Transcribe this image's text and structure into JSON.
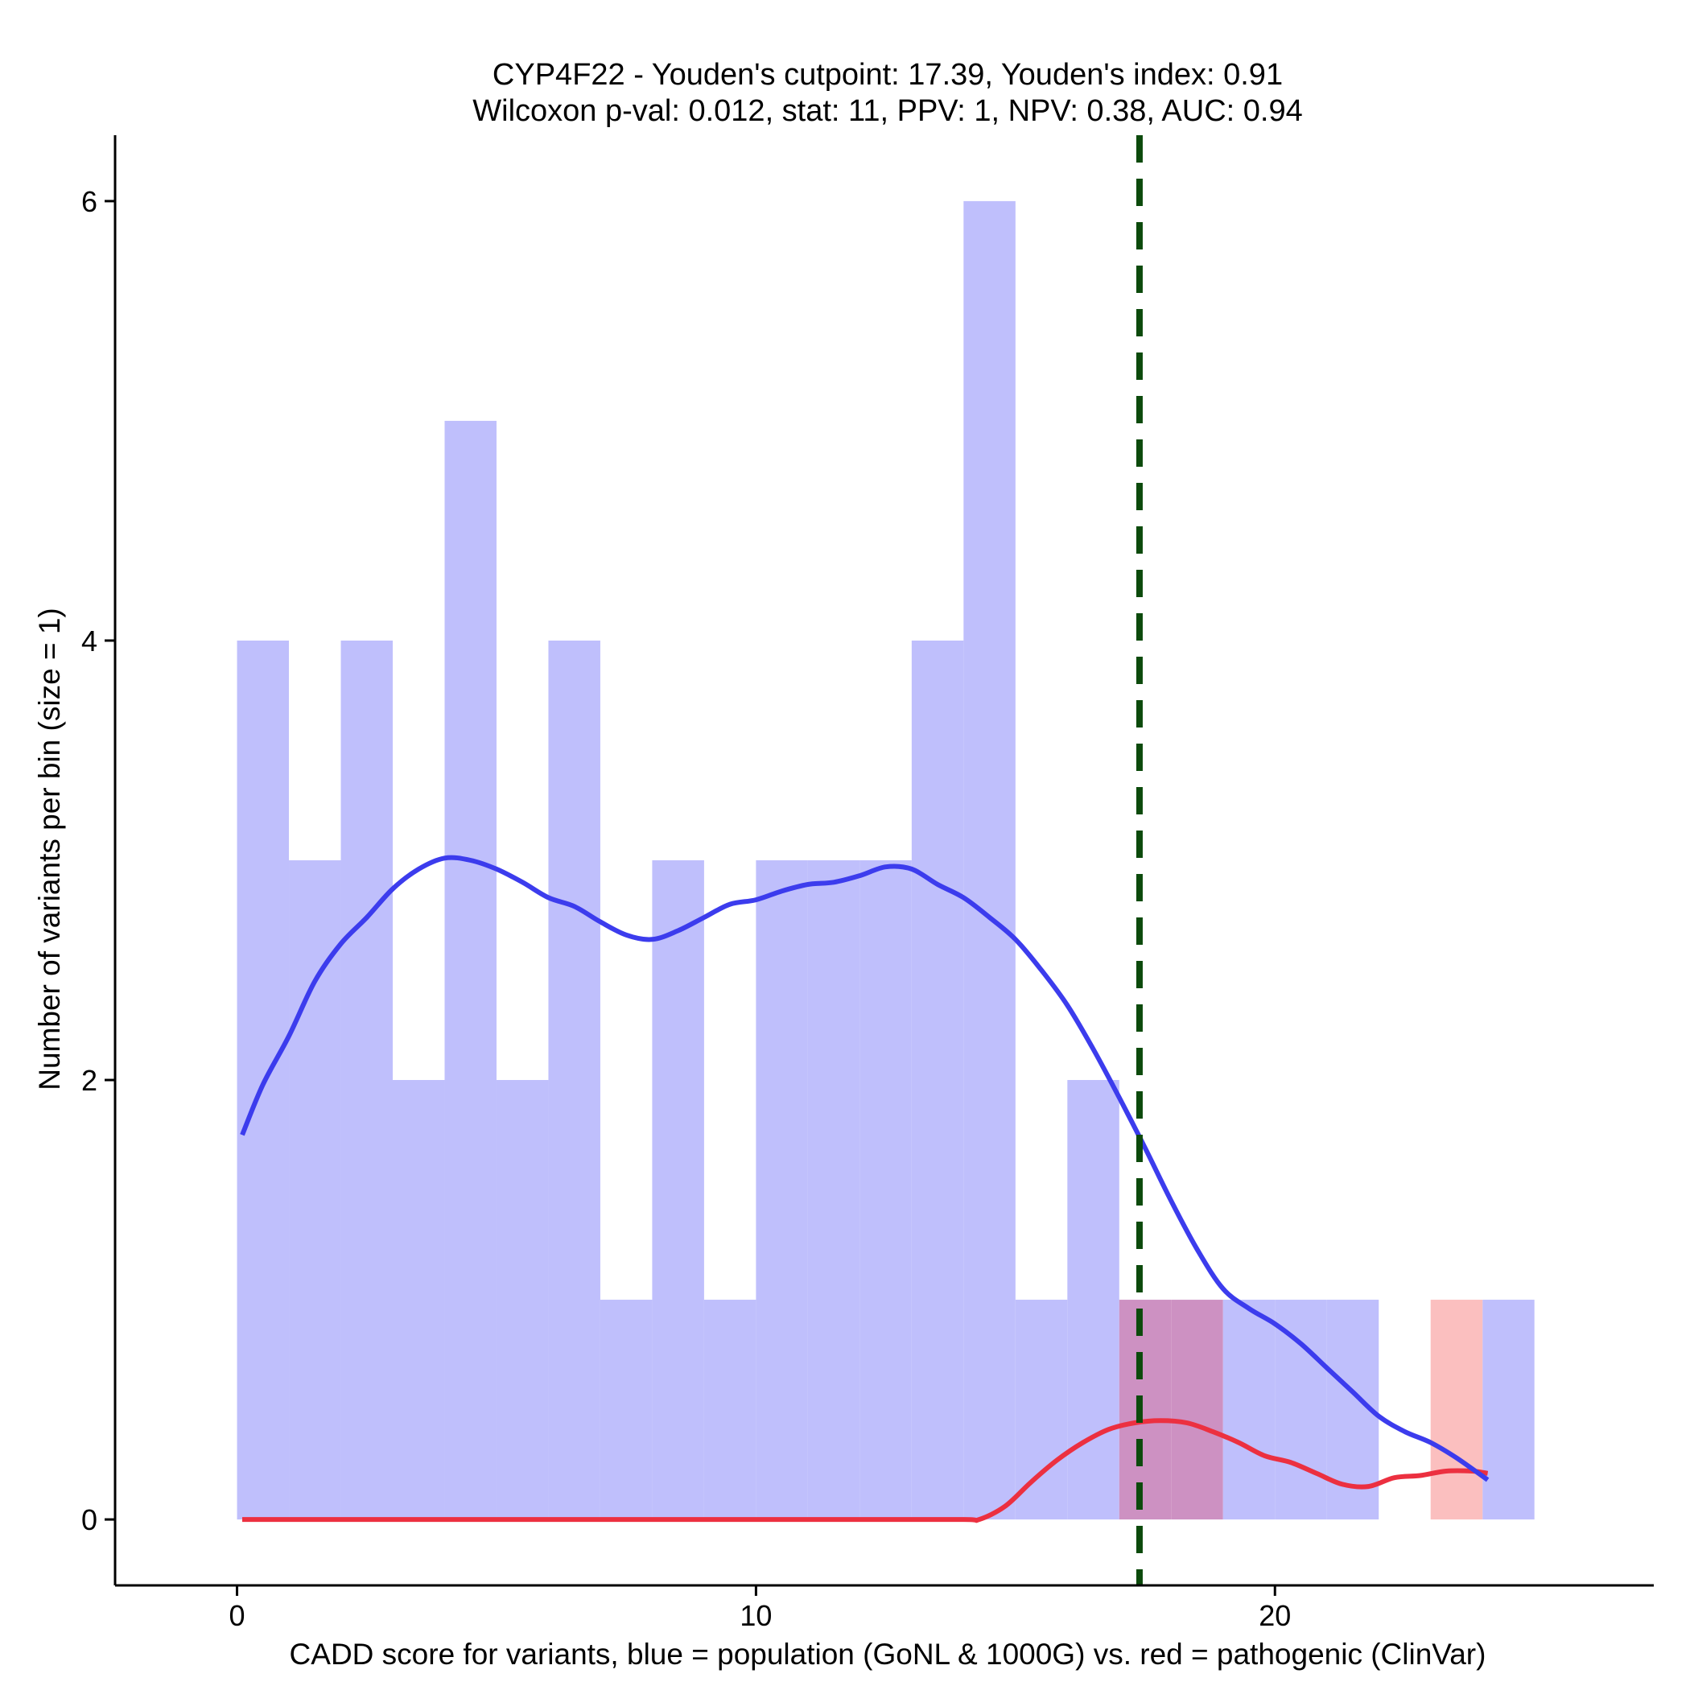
{
  "chart_data": {
    "type": "histogram",
    "title_line1": "CYP4F22 - Youden's cutpoint: 17.39, Youden's index: 0.91",
    "title_line2": "Wilcoxon p-val: 0.012, stat: 11, PPV: 1, NPV: 0.38, AUC: 0.94",
    "xlabel": "CADD score for variants, blue = population (GoNL & 1000G) vs. red = pathogenic (ClinVar)",
    "ylabel": "Number of variants per bin (size = 1)",
    "xlim": [
      -2.35,
      27.3
    ],
    "ylim": [
      -0.3,
      6.3
    ],
    "x_ticks": [
      0,
      10,
      20
    ],
    "y_ticks": [
      0,
      2,
      4,
      6
    ],
    "cutpoint": 17.39,
    "bin_size": 1,
    "colors": {
      "population_bar": "#bfbffc",
      "pathogenic_bar": "#fbbfbf",
      "overlap_bar": "#cd91c2",
      "population_line": "#3c3ced",
      "pathogenic_line": "#ec3040",
      "cutpoint_line": "#0c4a0c"
    },
    "series": [
      {
        "name": "population",
        "bins": [
          {
            "x0": 0,
            "x1": 1,
            "count": 4
          },
          {
            "x0": 1,
            "x1": 2,
            "count": 3
          },
          {
            "x0": 2,
            "x1": 3,
            "count": 4
          },
          {
            "x0": 3,
            "x1": 4,
            "count": 2
          },
          {
            "x0": 4,
            "x1": 5,
            "count": 5
          },
          {
            "x0": 5,
            "x1": 6,
            "count": 2
          },
          {
            "x0": 6,
            "x1": 7,
            "count": 4
          },
          {
            "x0": 7,
            "x1": 8,
            "count": 1
          },
          {
            "x0": 8,
            "x1": 9,
            "count": 3
          },
          {
            "x0": 9,
            "x1": 10,
            "count": 1
          },
          {
            "x0": 10,
            "x1": 11,
            "count": 3
          },
          {
            "x0": 11,
            "x1": 12,
            "count": 3
          },
          {
            "x0": 12,
            "x1": 13,
            "count": 3
          },
          {
            "x0": 13,
            "x1": 14,
            "count": 4
          },
          {
            "x0": 14,
            "x1": 15,
            "count": 6
          },
          {
            "x0": 15,
            "x1": 16,
            "count": 1
          },
          {
            "x0": 16,
            "x1": 17,
            "count": 2
          },
          {
            "x0": 17,
            "x1": 18,
            "count": 1
          },
          {
            "x0": 18,
            "x1": 19,
            "count": 1
          },
          {
            "x0": 19,
            "x1": 20,
            "count": 1
          },
          {
            "x0": 20,
            "x1": 21,
            "count": 1
          },
          {
            "x0": 21,
            "x1": 22,
            "count": 1
          },
          {
            "x0": 24,
            "x1": 25,
            "count": 1
          }
        ],
        "density_curve": {
          "x": [
            0.1,
            0.5,
            1.0,
            1.5,
            2.0,
            2.5,
            3.0,
            3.5,
            4.0,
            4.5,
            5.0,
            5.5,
            6.0,
            6.5,
            7.0,
            7.5,
            8.0,
            8.5,
            9.0,
            9.5,
            10.0,
            10.5,
            11.0,
            11.5,
            12.0,
            12.5,
            13.0,
            13.5,
            14.0,
            14.5,
            15.0,
            15.5,
            16.0,
            16.5,
            17.0,
            17.5,
            18.0,
            18.5,
            19.0,
            19.5,
            20.0,
            20.5,
            21.0,
            21.5,
            22.0,
            22.5,
            23.0,
            23.5,
            24.1
          ],
          "y": [
            1.75,
            1.98,
            2.2,
            2.45,
            2.62,
            2.74,
            2.87,
            2.96,
            3.01,
            3.0,
            2.96,
            2.9,
            2.83,
            2.79,
            2.72,
            2.66,
            2.64,
            2.68,
            2.74,
            2.8,
            2.82,
            2.86,
            2.89,
            2.9,
            2.93,
            2.97,
            2.96,
            2.89,
            2.83,
            2.74,
            2.64,
            2.5,
            2.34,
            2.14,
            1.92,
            1.69,
            1.45,
            1.23,
            1.05,
            0.96,
            0.89,
            0.8,
            0.69,
            0.58,
            0.47,
            0.4,
            0.35,
            0.28,
            0.18
          ]
        }
      },
      {
        "name": "pathogenic",
        "bins": [
          {
            "x0": 17,
            "x1": 18,
            "count": 1
          },
          {
            "x0": 18,
            "x1": 19,
            "count": 1
          },
          {
            "x0": 23,
            "x1": 24,
            "count": 1
          }
        ],
        "density_curve": {
          "x": [
            0.1,
            2.0,
            4.0,
            6.0,
            8.0,
            10.0,
            12.0,
            14.0,
            14.3,
            14.8,
            15.3,
            15.8,
            16.3,
            16.8,
            17.3,
            17.8,
            18.3,
            18.8,
            19.3,
            19.8,
            20.3,
            20.8,
            21.3,
            21.8,
            22.3,
            22.8,
            23.3,
            23.8,
            24.1
          ],
          "y": [
            0.0,
            0.0,
            0.0,
            0.0,
            0.0,
            0.0,
            0.0,
            0.0,
            0.0,
            0.06,
            0.17,
            0.27,
            0.35,
            0.41,
            0.44,
            0.45,
            0.44,
            0.4,
            0.35,
            0.29,
            0.26,
            0.21,
            0.16,
            0.15,
            0.19,
            0.2,
            0.22,
            0.22,
            0.21
          ]
        }
      }
    ]
  }
}
